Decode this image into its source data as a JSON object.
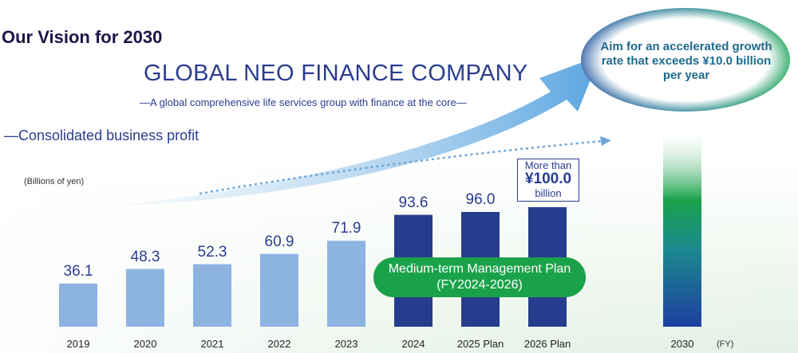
{
  "header": {
    "title": "Our Vision for 2030",
    "company": "GLOBAL NEO FINANCE COMPANY",
    "tagline": "—A global comprehensive life services group with finance at the core—"
  },
  "callouts": {
    "growth_goal": "Aim for an accelerated growth rate that exceeds ¥10.0 billion per year",
    "plan_line1": "Medium-term Management Plan",
    "plan_line2": "(FY2024-2026)",
    "target_line1": "More than",
    "target_line2": "¥100.0",
    "target_line3": "billion"
  },
  "colors": {
    "actual": "#8db3e2",
    "plan": "#263d8e",
    "accent_green": "#1aa24a",
    "title": "#1b1646"
  },
  "chart_data": {
    "type": "bar",
    "title": "—Consolidated business profit",
    "ylabel": "(Billions of yen)",
    "xlabel": "(FY)",
    "categories": [
      "2019",
      "2020",
      "2021",
      "2022",
      "2023",
      "2024",
      "2025 Plan",
      "2026 Plan",
      "2030"
    ],
    "values": [
      36.1,
      48.3,
      52.3,
      60.9,
      71.9,
      93.6,
      96.0,
      100.0,
      null
    ],
    "labels": [
      "36.1",
      "48.3",
      "52.3",
      "60.9",
      "71.9",
      "93.6",
      "96.0",
      "",
      ""
    ],
    "kinds": [
      "actual",
      "actual",
      "actual",
      "actual",
      "actual",
      "plan",
      "plan",
      "plan",
      "vision"
    ],
    "ylim": [
      0,
      170
    ],
    "grid": false
  }
}
